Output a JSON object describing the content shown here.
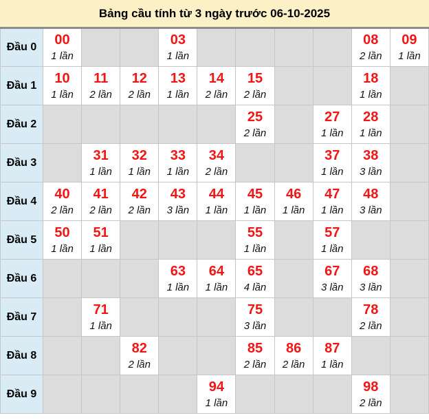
{
  "title": "Bảng cầu tính từ 3 ngày trước 06-10-2025",
  "colors": {
    "title_bg": "#FBF0C6",
    "row_header_bg": "#D9ECF6",
    "empty_cell_bg": "#DCDCDC",
    "filled_cell_bg": "#FFFFFF",
    "number_red": "#F31515",
    "count_text": "#111111",
    "grid_border": "#C6C6C6"
  },
  "table": {
    "rows": [
      {
        "label": "Đầu 0",
        "cells": [
          {
            "n": "00",
            "c": "1 lần"
          },
          null,
          null,
          {
            "n": "03",
            "c": "1 lần"
          },
          null,
          null,
          null,
          null,
          {
            "n": "08",
            "c": "2 lần"
          },
          {
            "n": "09",
            "c": "1 lần"
          }
        ]
      },
      {
        "label": "Đầu 1",
        "cells": [
          {
            "n": "10",
            "c": "1 lần"
          },
          {
            "n": "11",
            "c": "2 lần"
          },
          {
            "n": "12",
            "c": "2 lần"
          },
          {
            "n": "13",
            "c": "1 lần"
          },
          {
            "n": "14",
            "c": "2 lần"
          },
          {
            "n": "15",
            "c": "2 lần"
          },
          null,
          null,
          {
            "n": "18",
            "c": "1 lần"
          },
          null
        ]
      },
      {
        "label": "Đầu 2",
        "cells": [
          null,
          null,
          null,
          null,
          null,
          {
            "n": "25",
            "c": "2 lần"
          },
          null,
          {
            "n": "27",
            "c": "1 lần"
          },
          {
            "n": "28",
            "c": "1 lần"
          },
          null
        ]
      },
      {
        "label": "Đầu 3",
        "cells": [
          null,
          {
            "n": "31",
            "c": "1 lần"
          },
          {
            "n": "32",
            "c": "1 lần"
          },
          {
            "n": "33",
            "c": "1 lần"
          },
          {
            "n": "34",
            "c": "2 lần"
          },
          null,
          null,
          {
            "n": "37",
            "c": "1 lần"
          },
          {
            "n": "38",
            "c": "3 lần"
          },
          null
        ]
      },
      {
        "label": "Đầu 4",
        "cells": [
          {
            "n": "40",
            "c": "2 lần"
          },
          {
            "n": "41",
            "c": "2 lần"
          },
          {
            "n": "42",
            "c": "2 lần"
          },
          {
            "n": "43",
            "c": "3 lần"
          },
          {
            "n": "44",
            "c": "1 lần"
          },
          {
            "n": "45",
            "c": "1 lần"
          },
          {
            "n": "46",
            "c": "1 lần"
          },
          {
            "n": "47",
            "c": "1 lần"
          },
          {
            "n": "48",
            "c": "3 lần"
          },
          null
        ]
      },
      {
        "label": "Đầu 5",
        "cells": [
          {
            "n": "50",
            "c": "1 lần"
          },
          {
            "n": "51",
            "c": "1 lần"
          },
          null,
          null,
          null,
          {
            "n": "55",
            "c": "1 lần"
          },
          null,
          {
            "n": "57",
            "c": "1 lần"
          },
          null,
          null
        ]
      },
      {
        "label": "Đầu 6",
        "cells": [
          null,
          null,
          null,
          {
            "n": "63",
            "c": "1 lần"
          },
          {
            "n": "64",
            "c": "1 lần"
          },
          {
            "n": "65",
            "c": "4 lần"
          },
          null,
          {
            "n": "67",
            "c": "3 lần"
          },
          {
            "n": "68",
            "c": "3 lần"
          },
          null
        ]
      },
      {
        "label": "Đầu 7",
        "cells": [
          null,
          {
            "n": "71",
            "c": "1 lần"
          },
          null,
          null,
          null,
          {
            "n": "75",
            "c": "3 lần"
          },
          null,
          null,
          {
            "n": "78",
            "c": "2 lần"
          },
          null
        ]
      },
      {
        "label": "Đầu 8",
        "cells": [
          null,
          null,
          {
            "n": "82",
            "c": "2 lần"
          },
          null,
          null,
          {
            "n": "85",
            "c": "2 lần"
          },
          {
            "n": "86",
            "c": "2 lần"
          },
          {
            "n": "87",
            "c": "1 lần"
          },
          null,
          null
        ]
      },
      {
        "label": "Đầu 9",
        "cells": [
          null,
          null,
          null,
          null,
          {
            "n": "94",
            "c": "1 lần"
          },
          null,
          null,
          null,
          {
            "n": "98",
            "c": "2 lần"
          },
          null
        ]
      }
    ]
  }
}
